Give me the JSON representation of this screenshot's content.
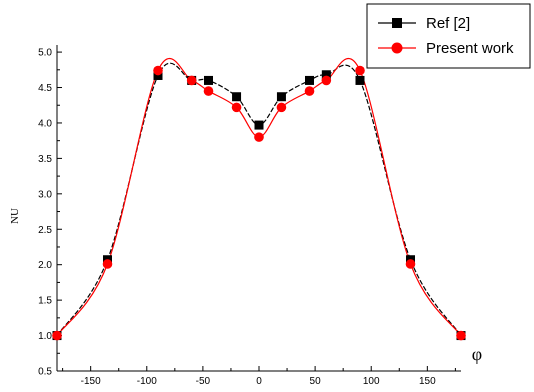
{
  "chart_data": {
    "type": "line",
    "xlabel": "φ",
    "ylabel": "NU",
    "xlim": [
      -180,
      180
    ],
    "ylim": [
      0.5,
      5.1
    ],
    "xticks": [
      "-150",
      "-100",
      "-50",
      "0",
      "50",
      "100",
      "150"
    ],
    "yticks": [
      "0.5",
      "1.0",
      "1.5",
      "2.0",
      "2.5",
      "3.0",
      "3.5",
      "4.0",
      "4.5",
      "5.0"
    ],
    "legend_position": "top-right",
    "grid": false,
    "series": [
      {
        "name": "Ref [2]",
        "color": "#000000",
        "marker": "square",
        "line_style": "dashed",
        "x": [
          -180,
          -135,
          -90,
          -60,
          -45,
          -20,
          0,
          20,
          45,
          60,
          90,
          135,
          180
        ],
        "y": [
          1.0,
          2.07,
          4.67,
          4.6,
          4.6,
          4.37,
          3.97,
          4.37,
          4.6,
          4.68,
          4.6,
          2.07,
          1.0
        ]
      },
      {
        "name": "Present work",
        "color": "#ff0000",
        "marker": "circle",
        "line_style": "solid",
        "x": [
          -180,
          -135,
          -90,
          -60,
          -45,
          -20,
          0,
          20,
          45,
          60,
          90,
          135,
          180
        ],
        "y": [
          1.0,
          2.01,
          4.74,
          4.6,
          4.45,
          4.22,
          3.8,
          4.22,
          4.45,
          4.6,
          4.74,
          2.01,
          1.0
        ]
      }
    ]
  }
}
